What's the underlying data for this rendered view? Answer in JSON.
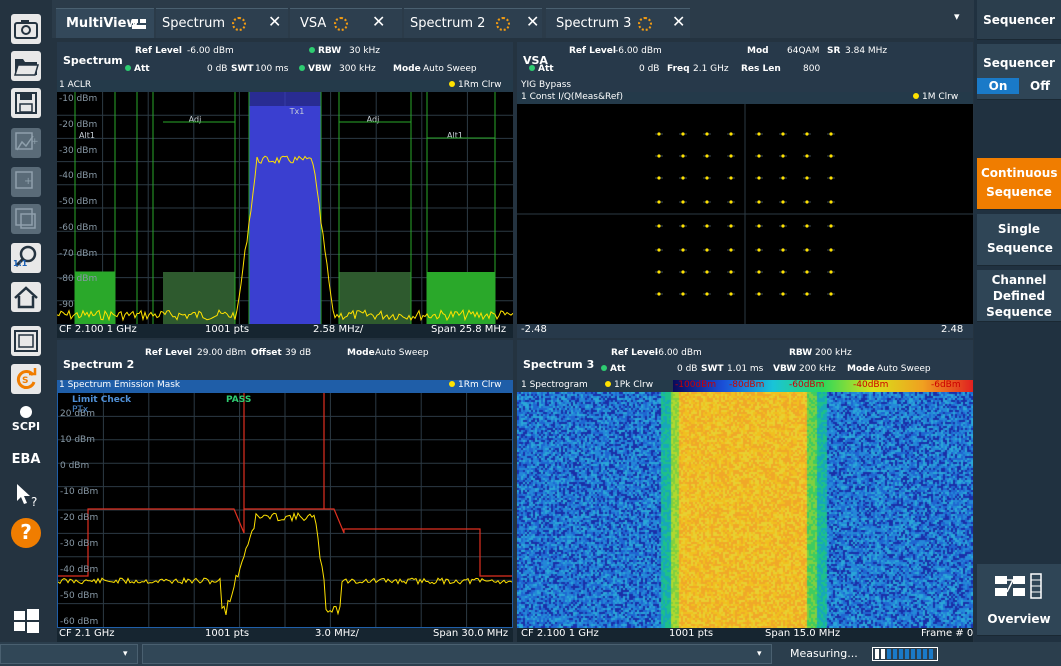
{
  "tabs": [
    {
      "label": "MultiView"
    },
    {
      "label": "Spectrum",
      "close": "✕"
    },
    {
      "label": "VSA",
      "close": "✕"
    },
    {
      "label": "Spectrum 2",
      "close": "✕"
    },
    {
      "label": "Spectrum 3",
      "close": "✕"
    }
  ],
  "tab_menu": "▾",
  "toolbar_icons": [
    "camera-icon",
    "folder-open-icon",
    "save-icon",
    "marker-icon",
    "zoom-area-icon",
    "multi-zoom-icon",
    "zoom-reset-icon",
    "home-icon",
    "fullscreen-icon",
    "refresh-icon",
    "scpi-icon",
    "eba-icon",
    "help-pointer-icon",
    "help-icon",
    "windows-icon"
  ],
  "toolbar_labels": {
    "scpi": "SCPI",
    "eba": "EBA",
    "zoom_ratio": "1:1",
    "help": "?"
  },
  "p1": {
    "name": "Spectrum",
    "ref_level_label": "Ref Level",
    "ref_level": "-6.00 dBm",
    "att_label": "Att",
    "att": "0 dB",
    "swt_label": "SWT",
    "swt": "100 ms",
    "rbw_label": "RBW",
    "rbw": "30 kHz",
    "vbw_label": "VBW",
    "vbw": "300 kHz",
    "mode_label": "Mode",
    "mode": "Auto Sweep",
    "trace_title": "1 ACLR",
    "trace_mode": "1Rm Clrw",
    "y_labels": [
      "-10 dBm",
      "-20 dBm",
      "-30 dBm",
      "-40 dBm",
      "-50 dBm",
      "-60 dBm",
      "-70 dBm",
      "-80 dBm",
      "-90"
    ],
    "channel_labels": [
      "Tx1",
      "Adj",
      "Adj",
      "Alt1",
      "Alt1"
    ],
    "footer": {
      "cf": "CF 2.100 1 GHz",
      "pts": "1001 pts",
      "div": "2.58 MHz/",
      "span": "Span 25.8 MHz"
    }
  },
  "p2": {
    "name": "VSA",
    "ref_level_label": "Ref Level",
    "ref_level": "-6.00 dBm",
    "att_label": "Att",
    "att": "0 dB",
    "freq_label": "Freq",
    "freq": "2.1 GHz",
    "mod_label": "Mod",
    "mod": "64QAM",
    "sr_label": "SR",
    "sr": "3.84 MHz",
    "reslen_label": "Res Len",
    "reslen": "800",
    "yig": "YIG Bypass",
    "trace_title": "1 Const I/Q(Meas&Ref)",
    "trace_mode": "1M Clrw",
    "footer": {
      "left": "-2.48",
      "right": "2.48"
    }
  },
  "p3": {
    "name": "Spectrum 2",
    "ref_level_label": "Ref Level",
    "ref_level": "29.00 dBm",
    "offset_label": "Offset",
    "offset": "39 dB",
    "mode_label": "Mode",
    "mode": "Auto Sweep",
    "trace_title": "1 Spectrum Emission Mask",
    "trace_mode": "1Rm Clrw",
    "limit_check": "Limit Check",
    "pass": "PASS",
    "ptx": "PTx",
    "y_labels": [
      "20 dBm",
      "10 dBm",
      "0 dBm",
      "-10 dBm",
      "-20 dBm",
      "-30 dBm",
      "-40 dBm",
      "-50 dBm",
      "-60 dBm"
    ],
    "footer": {
      "cf": "CF 2.1 GHz",
      "pts": "1001 pts",
      "div": "3.0 MHz/",
      "span": "Span 30.0 MHz"
    }
  },
  "p4": {
    "name": "Spectrum 3",
    "ref_level_label": "Ref Level",
    "ref_level": "-6.00 dBm",
    "att_label": "Att",
    "att": "0 dB",
    "swt_label": "SWT",
    "swt": "1.01 ms",
    "rbw_label": "RBW",
    "rbw": "200 kHz",
    "vbw_label": "VBW",
    "vbw": "200 kHz",
    "mode_label": "Mode",
    "mode": "Auto Sweep",
    "trace_title": "1 Spectrogram",
    "trace_mode": "1Pk Clrw",
    "scale": [
      "-100dBm",
      "-80dBm",
      "-60dBm",
      "-40dBm",
      "-6dBm"
    ],
    "footer": {
      "cf": "CF 2.100 1 GHz",
      "pts": "1001 pts",
      "span": "Span 15.0 MHz",
      "frame": "Frame # 0"
    }
  },
  "right": {
    "title": "Sequencer",
    "seq_label": "Sequencer",
    "on": "On",
    "off": "Off",
    "continuous": "Continuous Sequence",
    "single": "Single Sequence",
    "channel": "Channel Defined Sequence",
    "overview": "Overview"
  },
  "status": {
    "dropdown1": "▾",
    "dropdown2": "▾",
    "measuring": "Measuring..."
  },
  "colors": {
    "accent": "#f07d00",
    "trace": "#ffe200",
    "blue": "#3a3fd0",
    "green": "#2aa82a",
    "red": "#e03020"
  }
}
